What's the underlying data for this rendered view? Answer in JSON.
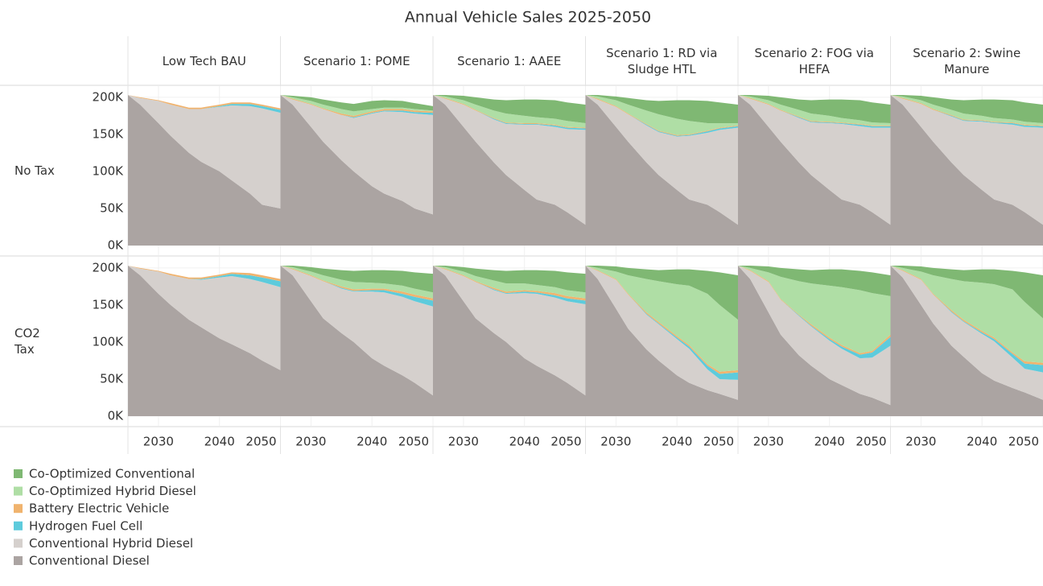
{
  "chart_data": {
    "type": "area",
    "stacked": true,
    "title": "Annual Vehicle Sales 2025-2050",
    "columns": [
      "Low Tech BAU",
      "Scenario 1: POME",
      "Scenario 1: AAEE",
      "Scenario 1: RD via Sludge HTL",
      "Scenario 2:  FOG via HEFA",
      "Scenario 2: Swine Manure"
    ],
    "rows": [
      "No Tax",
      "CO2 Tax"
    ],
    "x": [
      2025,
      2027,
      2030,
      2032,
      2035,
      2037,
      2040,
      2042,
      2045,
      2047,
      2050
    ],
    "xlim": [
      2025,
      2050
    ],
    "xticks": [
      2030,
      2040,
      2050
    ],
    "ylim": [
      -13000,
      215000
    ],
    "yticks": [
      {
        "value": 0,
        "label": "0K"
      },
      {
        "value": 50000,
        "label": "50K"
      },
      {
        "value": 100000,
        "label": "100K"
      },
      {
        "value": 150000,
        "label": "150K"
      },
      {
        "value": 200000,
        "label": "200K"
      }
    ],
    "grid": true,
    "series": [
      {
        "name": "Co-Optimized Conventional",
        "color": "#7fb873",
        "values": [
          [
            0,
            0,
            0,
            0,
            0,
            0,
            0,
            0,
            0,
            0,
            0
          ],
          [
            0,
            2000,
            5000,
            7000,
            9000,
            10000,
            11000,
            10000,
            9000,
            8000,
            6000
          ],
          [
            0,
            2000,
            6000,
            10000,
            15000,
            18000,
            22000,
            24000,
            25000,
            25000,
            25000
          ],
          [
            0,
            2000,
            5000,
            9000,
            14000,
            18000,
            25000,
            28000,
            30000,
            28000,
            25000
          ],
          [
            0,
            2000,
            6000,
            10000,
            14000,
            18000,
            22000,
            25000,
            27000,
            27000,
            25000
          ],
          [
            0,
            2000,
            6000,
            10000,
            14000,
            18000,
            22000,
            25000,
            26000,
            26000,
            25000
          ],
          [
            0,
            0,
            0,
            0,
            0,
            0,
            0,
            0,
            0,
            0,
            0
          ],
          [
            0,
            2000,
            6000,
            9000,
            13000,
            15000,
            17000,
            18000,
            20000,
            22000,
            25000
          ],
          [
            0,
            2000,
            6000,
            10000,
            14000,
            17000,
            18000,
            20000,
            22000,
            24000,
            25000
          ],
          [
            0,
            3000,
            7000,
            10000,
            13000,
            15000,
            20000,
            22000,
            31000,
            44000,
            60000
          ],
          [
            0,
            3000,
            8000,
            12000,
            16000,
            18000,
            22000,
            24000,
            26000,
            28000,
            28000
          ],
          [
            0,
            3000,
            7000,
            10000,
            13000,
            15000,
            18000,
            20000,
            25000,
            40000,
            58000
          ]
        ]
      },
      {
        "name": "Co-Optimized Hybrid Diesel",
        "color": "#afdea5",
        "values": [
          [
            0,
            0,
            0,
            0,
            0,
            0,
            0,
            0,
            0,
            0,
            0
          ],
          [
            0,
            2000,
            4000,
            5000,
            6000,
            6000,
            3000,
            2000,
            2000,
            2000,
            1000
          ],
          [
            0,
            2000,
            5000,
            7000,
            10000,
            12000,
            10000,
            8000,
            8000,
            8000,
            6000
          ],
          [
            0,
            3000,
            8000,
            12000,
            18000,
            22000,
            22000,
            18000,
            10000,
            6000,
            3000
          ],
          [
            0,
            2000,
            5000,
            7000,
            9000,
            10000,
            8000,
            6000,
            5000,
            4000,
            3000
          ],
          [
            0,
            2000,
            4000,
            6000,
            7000,
            8000,
            6000,
            5000,
            4000,
            4000,
            3000
          ],
          [
            0,
            0,
            0,
            0,
            0,
            0,
            0,
            0,
            0,
            0,
            0
          ],
          [
            0,
            2000,
            5000,
            7000,
            9000,
            10000,
            8000,
            7000,
            8000,
            8000,
            8000
          ],
          [
            0,
            2000,
            5000,
            7000,
            10000,
            11000,
            9000,
            8000,
            8000,
            8000,
            8000
          ],
          [
            0,
            3000,
            10000,
            25000,
            45000,
            55000,
            70000,
            80000,
            95000,
            90000,
            68000
          ],
          [
            0,
            3000,
            12000,
            30000,
            45000,
            55000,
            70000,
            78000,
            85000,
            78000,
            52000
          ],
          [
            0,
            3000,
            10000,
            25000,
            42000,
            52000,
            65000,
            72000,
            85000,
            80000,
            60000
          ]
        ]
      },
      {
        "name": "Battery Electric Vehicle",
        "color": "#f0b36e",
        "values": [
          [
            0,
            1000,
            1000,
            2000,
            2000,
            2000,
            2000,
            2000,
            2000,
            2000,
            2000
          ],
          [
            0,
            1000,
            1000,
            1000,
            2000,
            2000,
            2000,
            2000,
            2000,
            2000,
            2000
          ],
          [
            0,
            1000,
            1000,
            1000,
            1000,
            1000,
            1000,
            1000,
            1000,
            1000,
            1000
          ],
          [
            0,
            1000,
            1000,
            1000,
            1000,
            1000,
            1000,
            1000,
            1000,
            1000,
            1000
          ],
          [
            0,
            1000,
            1000,
            1000,
            1000,
            1000,
            1000,
            1000,
            1000,
            1000,
            1000
          ],
          [
            0,
            1000,
            1000,
            1000,
            1000,
            1000,
            1000,
            1000,
            1000,
            1000,
            1000
          ],
          [
            0,
            1000,
            1000,
            2000,
            2000,
            2000,
            2000,
            2000,
            3000,
            3000,
            3000
          ],
          [
            0,
            1000,
            1000,
            1000,
            2000,
            2000,
            2000,
            2000,
            3000,
            3000,
            3000
          ],
          [
            0,
            1000,
            1000,
            1000,
            2000,
            2000,
            2000,
            2000,
            3000,
            3000,
            3000
          ],
          [
            0,
            1000,
            1000,
            1000,
            2000,
            2000,
            2000,
            2000,
            2000,
            3000,
            3000
          ],
          [
            0,
            1000,
            1000,
            1000,
            1000,
            2000,
            2000,
            2000,
            2000,
            2000,
            3000
          ],
          [
            0,
            1000,
            1000,
            1000,
            2000,
            2000,
            2000,
            2000,
            2000,
            3000,
            3000
          ]
        ]
      },
      {
        "name": "Hydrogen Fuel Cell",
        "color": "#5dcbdc",
        "values": [
          [
            0,
            0,
            0,
            0,
            0,
            0,
            1000,
            2000,
            3000,
            3000,
            4000
          ],
          [
            0,
            0,
            0,
            0,
            0,
            1000,
            1000,
            1000,
            2000,
            2000,
            3000
          ],
          [
            0,
            0,
            0,
            0,
            1000,
            1000,
            1000,
            1000,
            2000,
            2000,
            2000
          ],
          [
            0,
            0,
            0,
            0,
            1000,
            1000,
            1000,
            1000,
            2000,
            2000,
            2000
          ],
          [
            0,
            0,
            0,
            0,
            1000,
            1000,
            1000,
            1000,
            2000,
            2000,
            2000
          ],
          [
            0,
            0,
            0,
            0,
            1000,
            1000,
            1000,
            1000,
            2000,
            2000,
            2000
          ],
          [
            0,
            0,
            0,
            0,
            0,
            1000,
            2000,
            3000,
            5000,
            6000,
            8000
          ],
          [
            0,
            0,
            0,
            0,
            1000,
            1000,
            2000,
            3000,
            4000,
            6000,
            8000
          ],
          [
            0,
            0,
            0,
            0,
            1000,
            1000,
            2000,
            2000,
            3000,
            4000,
            5000
          ],
          [
            0,
            0,
            0,
            0,
            1000,
            1000,
            2000,
            3000,
            5000,
            7000,
            10000
          ],
          [
            0,
            0,
            0,
            0,
            1000,
            1000,
            2000,
            3000,
            5000,
            7000,
            12000
          ],
          [
            0,
            0,
            0,
            0,
            1000,
            1000,
            2000,
            3000,
            5000,
            7000,
            10000
          ]
        ]
      },
      {
        "name": "Conventional Hybrid Diesel",
        "color": "#d5d0cd",
        "values": [
          [
            0,
            9000,
            30000,
            42000,
            59000,
            71000,
            87000,
            101000,
            118000,
            130000,
            129000
          ],
          [
            0,
            7000,
            30000,
            44000,
            61000,
            72000,
            98000,
            111000,
            120000,
            128000,
            134000
          ],
          [
            0,
            8000,
            30000,
            42000,
            58000,
            69000,
            88000,
            101000,
            105000,
            112000,
            128000
          ],
          [
            0,
            7000,
            27000,
            37000,
            50000,
            58000,
            72000,
            86000,
            97000,
            111000,
            131000
          ],
          [
            0,
            8000,
            30000,
            42000,
            60000,
            71000,
            90000,
            102000,
            106000,
            114000,
            131000
          ],
          [
            0,
            8000,
            31000,
            43000,
            62000,
            73000,
            92000,
            103000,
            108000,
            115000,
            131000
          ],
          [
            0,
            9000,
            30000,
            40000,
            55000,
            64000,
            82000,
            92000,
            100000,
            106000,
            112000
          ],
          [
            0,
            8000,
            34000,
            50000,
            60000,
            68000,
            90000,
            99000,
            106000,
            110000,
            120000
          ],
          [
            0,
            8000,
            34000,
            49000,
            58000,
            65000,
            88000,
            97000,
            105000,
            110000,
            123000
          ],
          [
            0,
            11000,
            39000,
            46000,
            47000,
            49000,
            49000,
            46000,
            28000,
            20000,
            27000
          ],
          [
            0,
            11000,
            41000,
            47000,
            53000,
            53000,
            52000,
            49000,
            48000,
            54000,
            80000
          ],
          [
            0,
            9000,
            34000,
            39000,
            45000,
            47000,
            53000,
            53000,
            41000,
            32000,
            37000
          ]
        ]
      },
      {
        "name": "Conventional Diesel",
        "color": "#aba4a2",
        "values": [
          [
            203000,
            190000,
            165000,
            148000,
            125000,
            113000,
            100000,
            88000,
            70000,
            55000,
            50000
          ],
          [
            203000,
            190000,
            160000,
            140000,
            115000,
            100000,
            80000,
            70000,
            60000,
            50000,
            42000
          ],
          [
            203000,
            190000,
            160000,
            140000,
            112000,
            95000,
            75000,
            62000,
            55000,
            45000,
            28000
          ],
          [
            203000,
            190000,
            160000,
            140000,
            112000,
            95000,
            75000,
            62000,
            55000,
            45000,
            28000
          ],
          [
            203000,
            190000,
            160000,
            140000,
            112000,
            95000,
            75000,
            62000,
            55000,
            45000,
            28000
          ],
          [
            203000,
            190000,
            160000,
            140000,
            112000,
            95000,
            75000,
            62000,
            55000,
            45000,
            28000
          ],
          [
            203000,
            190000,
            165000,
            150000,
            130000,
            120000,
            105000,
            97000,
            85000,
            75000,
            62000
          ],
          [
            203000,
            190000,
            155000,
            132000,
            112000,
            100000,
            78000,
            68000,
            55000,
            45000,
            28000
          ],
          [
            203000,
            190000,
            155000,
            132000,
            112000,
            100000,
            78000,
            68000,
            55000,
            45000,
            28000
          ],
          [
            203000,
            185000,
            145000,
            118000,
            90000,
            75000,
            55000,
            45000,
            35000,
            30000,
            22000
          ],
          [
            203000,
            185000,
            140000,
            110000,
            82000,
            68000,
            50000,
            42000,
            30000,
            25000,
            15000
          ],
          [
            203000,
            187000,
            150000,
            125000,
            95000,
            80000,
            58000,
            48000,
            38000,
            32000,
            22000
          ]
        ]
      }
    ]
  }
}
